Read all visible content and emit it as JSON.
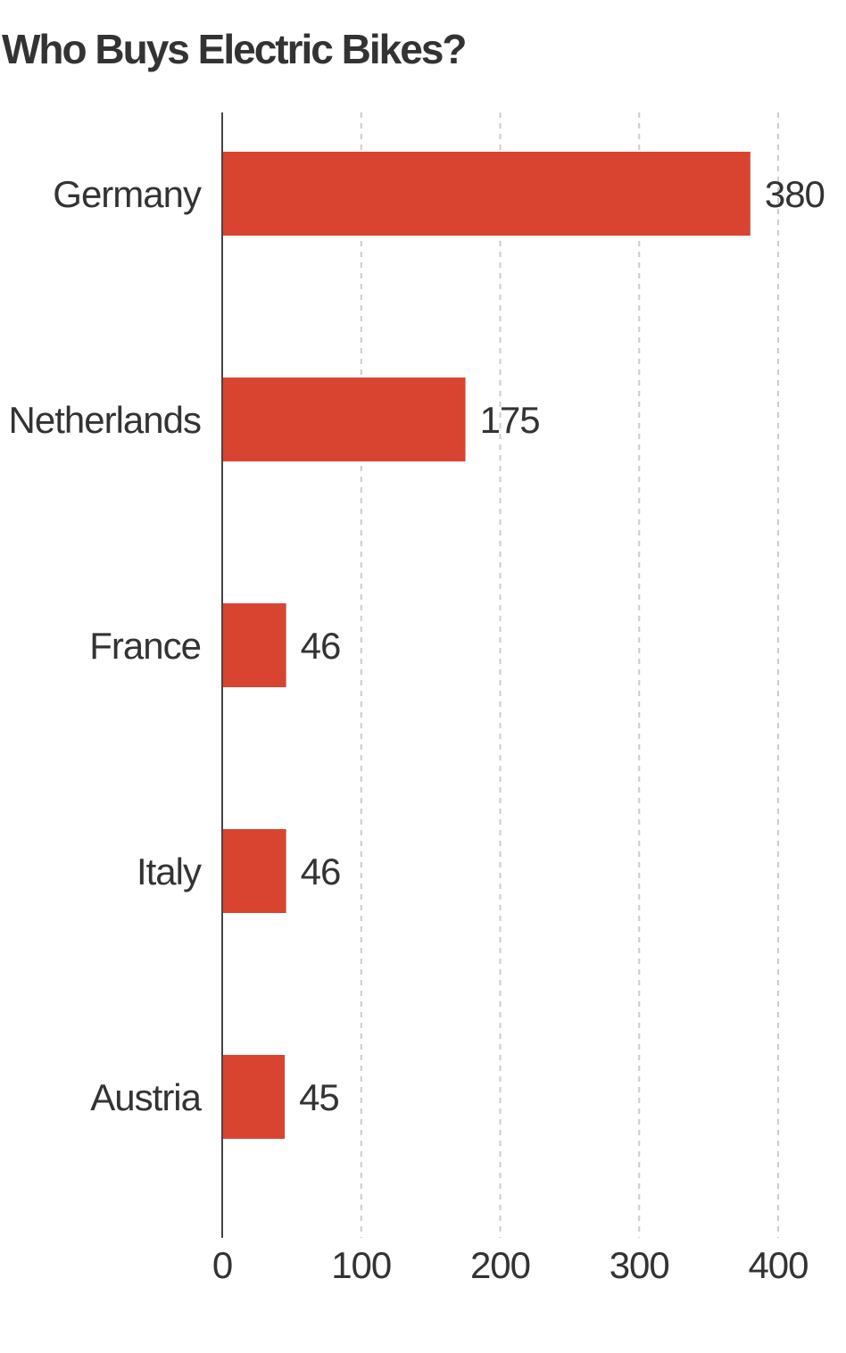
{
  "chart_data": {
    "type": "bar",
    "orientation": "horizontal",
    "title": "Who Buys Electric Bikes?",
    "categories": [
      "Germany",
      "Netherlands",
      "France",
      "Italy",
      "Austria"
    ],
    "values": [
      380,
      175,
      46,
      46,
      45
    ],
    "data_labels": [
      "380",
      "175",
      "46",
      "46",
      "45"
    ],
    "xlim": [
      0,
      400
    ],
    "x_ticks": [
      0,
      100,
      200,
      300,
      400
    ],
    "x_tick_labels": [
      "0",
      "100",
      "200",
      "300",
      "400"
    ],
    "xlabel": "",
    "ylabel": "",
    "grid": true,
    "bar_color": "#d94431"
  }
}
